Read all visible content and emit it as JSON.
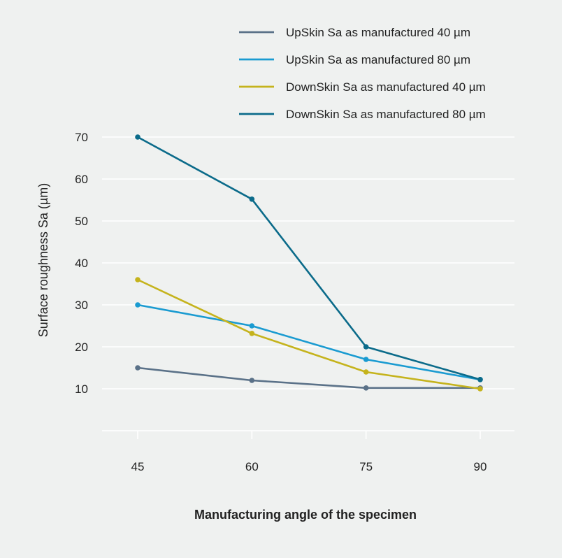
{
  "chart_data": {
    "type": "line",
    "title": "",
    "xlabel": "Manufacturing angle of the specimen",
    "ylabel": "Surface roughness Sa (µm)",
    "categories": [
      45,
      60,
      75,
      90
    ],
    "category_labels": [
      "45",
      "60",
      "75",
      "90"
    ],
    "ylim": [
      0,
      70
    ],
    "yticks": [
      10,
      20,
      30,
      40,
      50,
      60,
      70
    ],
    "ytick_labels": [
      "10",
      "20",
      "30",
      "40",
      "50",
      "60",
      "70"
    ],
    "grid": true,
    "legend_position": "top-right",
    "series": [
      {
        "name": "UpSkin Sa as manufactured 40 µm",
        "color": "#5a7188",
        "values": [
          15,
          12,
          10.2,
          10.2
        ]
      },
      {
        "name": "UpSkin Sa as manufactured 80 µm",
        "color": "#1a9bd1",
        "values": [
          30,
          25,
          17,
          12.2
        ]
      },
      {
        "name": "DownSkin Sa as manufactured 40 µm",
        "color": "#c5b31c",
        "values": [
          36,
          23.2,
          14,
          10
        ]
      },
      {
        "name": "DownSkin Sa as manufactured 80 µm",
        "color": "#0b6b8a",
        "values": [
          70,
          55.2,
          20,
          12.2
        ]
      }
    ]
  }
}
